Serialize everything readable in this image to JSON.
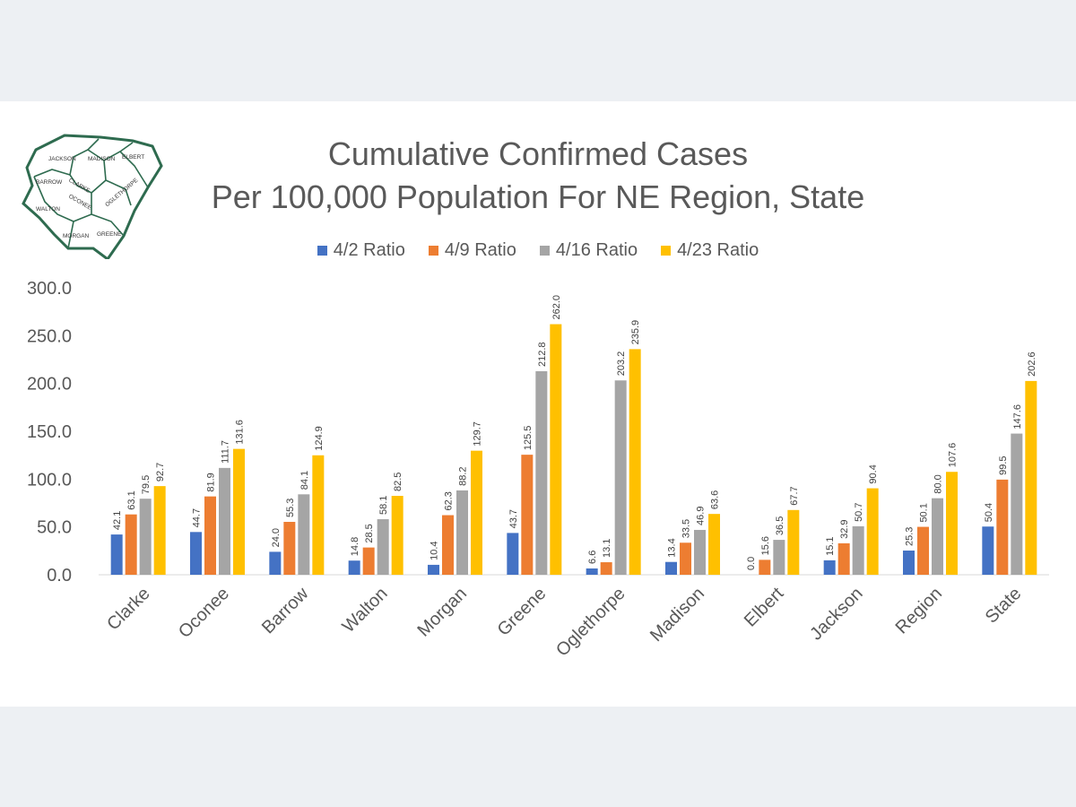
{
  "chart_data": {
    "type": "bar",
    "title": "Cumulative Confirmed Cases",
    "subtitle": "Per 100,000 Population For NE Region, State",
    "xlabel": "",
    "ylabel": "",
    "ylim": [
      0,
      300
    ],
    "yticks": [
      {
        "value": 0,
        "label": "0.0"
      },
      {
        "value": 50,
        "label": "50.0"
      },
      {
        "value": 100,
        "label": "100.0"
      },
      {
        "value": 150,
        "label": "150.0"
      },
      {
        "value": 200,
        "label": "200.0"
      },
      {
        "value": 250,
        "label": "250.0"
      },
      {
        "value": 300,
        "label": "300.0"
      }
    ],
    "grid": false,
    "legend_position": "top",
    "categories": [
      "Clarke",
      "Oconee",
      "Barrow",
      "Walton",
      "Morgan",
      "Greene",
      "Oglethorpe",
      "Madison",
      "Elbert",
      "Jackson",
      "Region",
      "State"
    ],
    "series": [
      {
        "name": "4/2 Ratio",
        "color": "#4472c4",
        "values": [
          42.1,
          44.7,
          24.0,
          14.8,
          10.4,
          43.7,
          6.6,
          13.4,
          0.0,
          15.1,
          25.3,
          50.4
        ],
        "labels": [
          "42.1",
          "44.7",
          "24.0",
          "14.8",
          "10.4",
          "43.7",
          "6.6",
          "13.4",
          "0.0",
          "15.1",
          "25.3",
          "50.4"
        ]
      },
      {
        "name": "4/9 Ratio",
        "color": "#ed7d31",
        "values": [
          63.1,
          81.9,
          55.3,
          28.5,
          62.3,
          125.5,
          13.1,
          33.5,
          15.6,
          32.9,
          50.1,
          99.5
        ],
        "labels": [
          "63.1",
          "81.9",
          "55.3",
          "28.5",
          "62.3",
          "125.5",
          "13.1",
          "33.5",
          "15.6",
          "32.9",
          "50.1",
          "99.5"
        ]
      },
      {
        "name": "4/16 Ratio",
        "color": "#a5a5a5",
        "values": [
          79.5,
          111.7,
          84.1,
          58.1,
          88.2,
          212.8,
          203.2,
          46.9,
          36.5,
          50.7,
          80.0,
          147.6
        ],
        "labels": [
          "79.5",
          "111.7",
          "84.1",
          "58.1",
          "88.2",
          "212.8",
          "203.2",
          "46.9",
          "36.5",
          "50.7",
          "80.0",
          "147.6"
        ]
      },
      {
        "name": "4/23 Ratio",
        "color": "#ffc000",
        "values": [
          92.7,
          131.6,
          124.9,
          82.5,
          129.7,
          262.0,
          235.9,
          63.6,
          67.7,
          90.4,
          107.6,
          202.6
        ],
        "labels": [
          "92.7",
          "131.6",
          "124.9",
          "82.5",
          "129.7",
          "262.0",
          "235.9",
          "63.6",
          "67.7",
          "90.4",
          "107.6",
          "202.6"
        ]
      }
    ]
  },
  "map": {
    "labels": [
      "JACKSON",
      "MADISON",
      "ELBERT",
      "BARROW",
      "CLARKE",
      "OCONEE",
      "OGLETHORPE",
      "WALTON",
      "MORGAN",
      "GREENE"
    ],
    "border_color": "#2e6b4f"
  }
}
